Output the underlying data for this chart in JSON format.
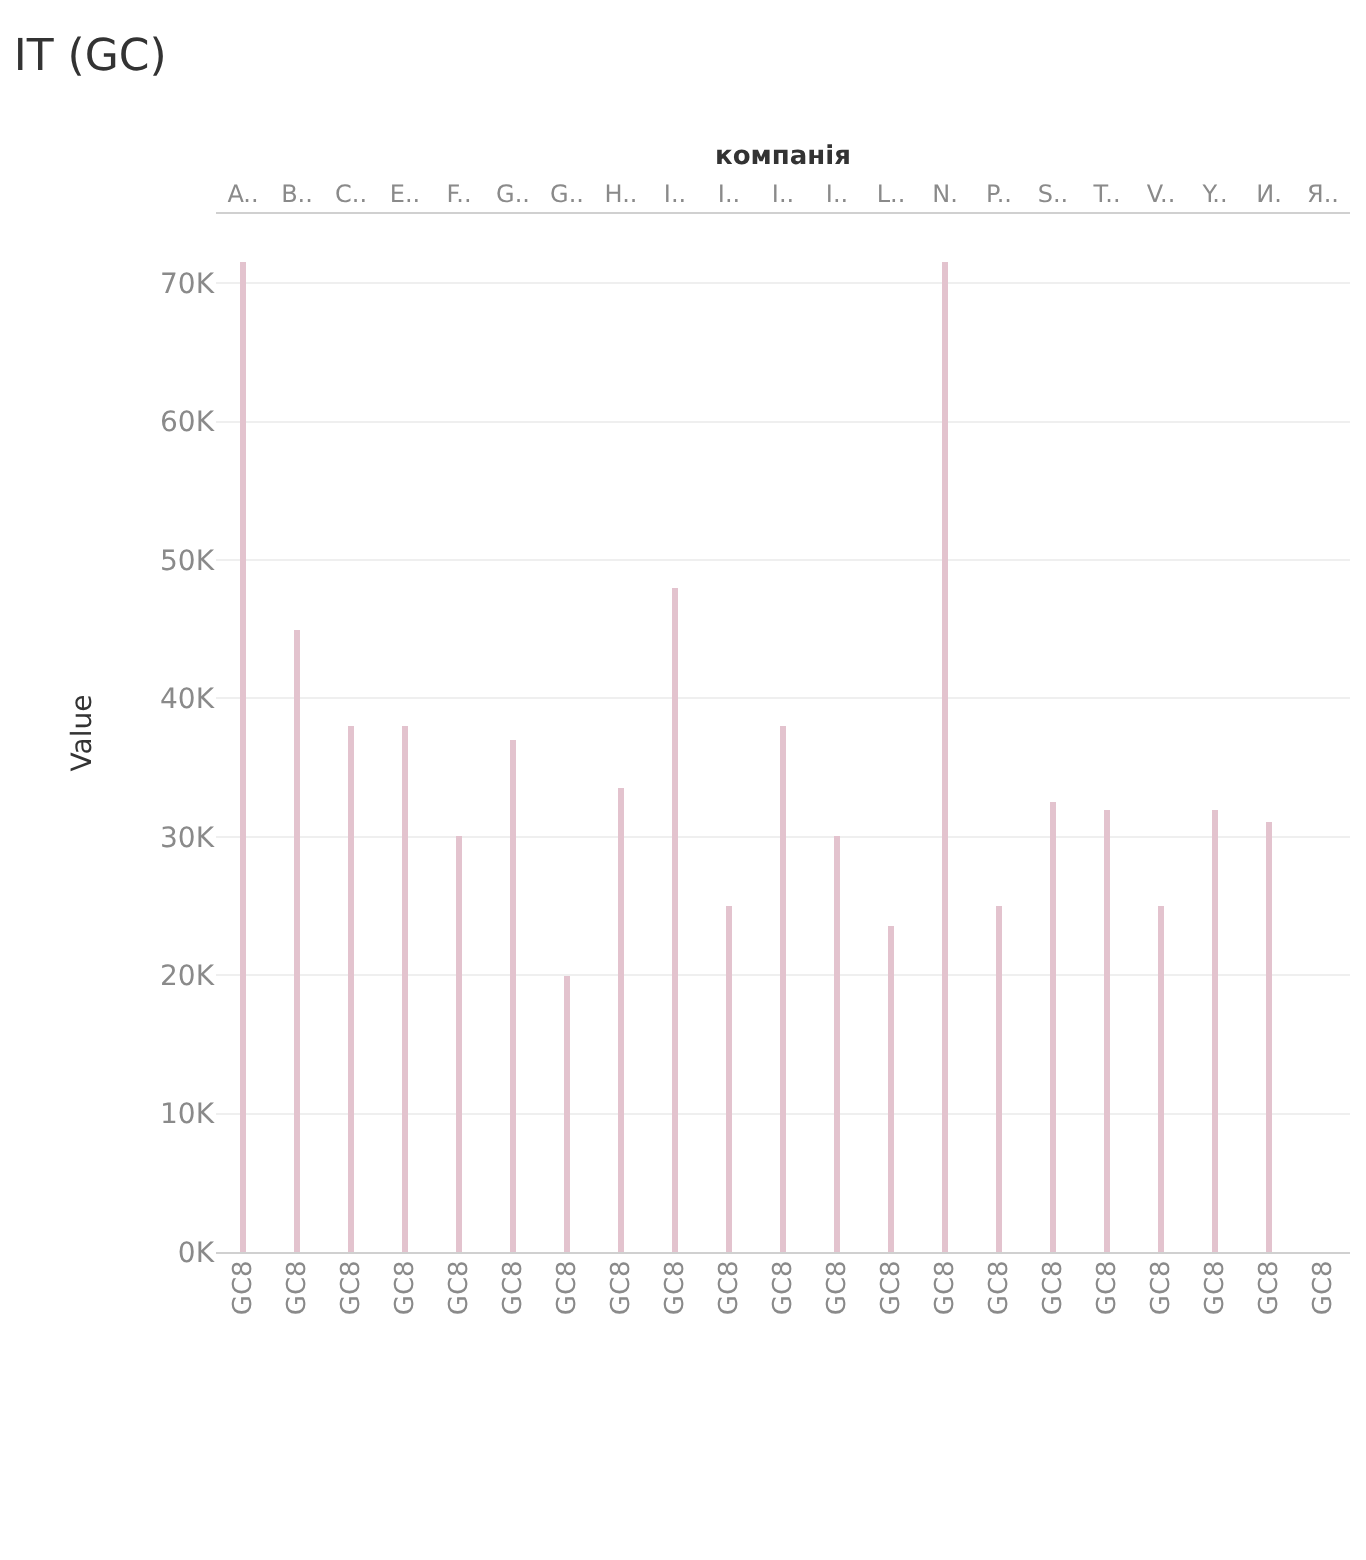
{
  "chart_data": {
    "type": "bar",
    "title": "IT (GC)",
    "xlabel": "компанія",
    "ylabel": "Value",
    "categories": [
      "A..",
      "B..",
      "C..",
      "E..",
      "F..",
      "G..",
      "G..",
      "H..",
      "I..",
      "I..",
      "I..",
      "I..",
      "L..",
      "N.",
      "P..",
      "S..",
      "T..",
      "V..",
      "Y..",
      "И.",
      "Я.."
    ],
    "values": [
      71500,
      45000,
      38000,
      38000,
      30000,
      37000,
      20000,
      33500,
      48000,
      25000,
      38000,
      30000,
      23500,
      71500,
      25000,
      32500,
      32000,
      25000,
      32000,
      31000,
      null
    ],
    "color": "#e3c3ce",
    "ylim": [
      0,
      75000
    ],
    "yticks": [
      {
        "value": 0,
        "label": "0K"
      },
      {
        "value": 10000,
        "label": "10K"
      },
      {
        "value": 20000,
        "label": "20K"
      },
      {
        "value": 30000,
        "label": "30K"
      },
      {
        "value": 40000,
        "label": "40K"
      },
      {
        "value": 50000,
        "label": "50K"
      },
      {
        "value": 60000,
        "label": "60K"
      },
      {
        "value": 70000,
        "label": "70K"
      }
    ],
    "grid": "y",
    "annotations": [
      "GC8",
      "GC8",
      "GC8",
      "GC8",
      "GC8",
      "GC8",
      "GC8",
      "GC8",
      "GC8",
      "GC8",
      "GC8",
      "GC8",
      "GC8",
      "GC8",
      "GC8",
      "GC8",
      "GC8",
      "GC8",
      "GC8",
      "GC8",
      "GC8"
    ]
  }
}
